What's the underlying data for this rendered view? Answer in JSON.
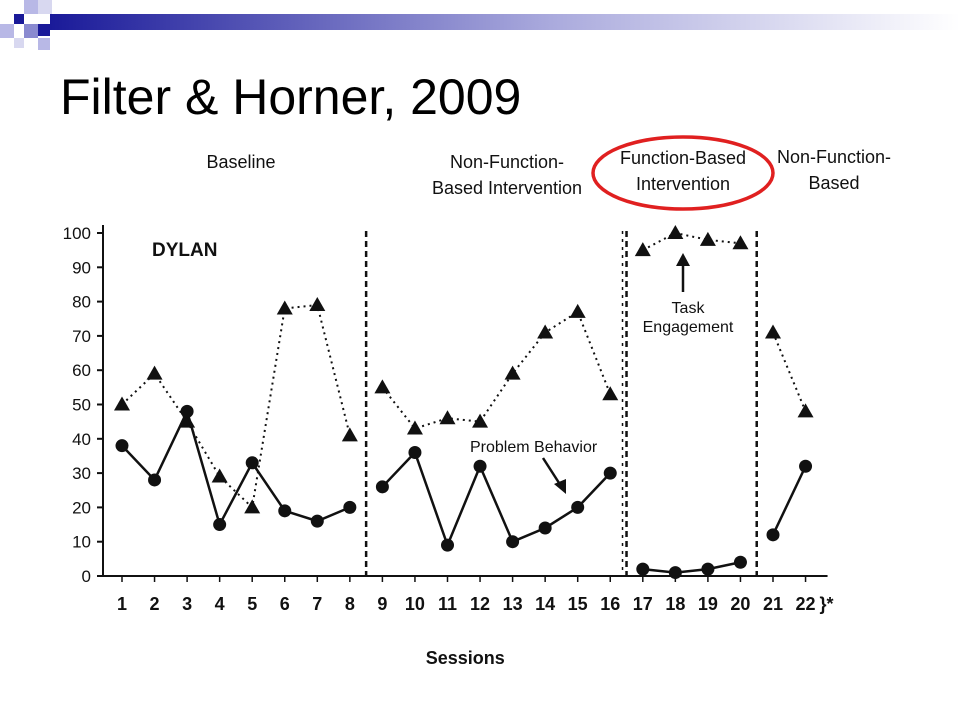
{
  "slide": {
    "title": "Filter & Horner, 2009"
  },
  "colors": {
    "accent_dark": "#1a1a99",
    "accent_light": "#b8b8e6",
    "highlight_circle": "#e02020",
    "ink": "#111111"
  },
  "chart_data": {
    "type": "line",
    "subject": "DYLAN",
    "xlabel": "Sessions",
    "ylabel": "",
    "ylim": [
      0,
      100
    ],
    "yticks": [
      0,
      10,
      20,
      30,
      40,
      50,
      60,
      70,
      80,
      90,
      100
    ],
    "x": [
      1,
      2,
      3,
      4,
      5,
      6,
      7,
      8,
      9,
      10,
      11,
      12,
      13,
      14,
      15,
      16,
      17,
      18,
      19,
      20,
      21,
      22
    ],
    "x_tick_labels": [
      "1",
      "2",
      "3",
      "4",
      "5",
      "6",
      "7",
      "8",
      "9",
      "10",
      "11",
      "12",
      "13",
      "14",
      "15",
      "16",
      "17",
      "18",
      "19",
      "20",
      "21",
      "22"
    ],
    "x_bracket_note": "*",
    "phases": [
      {
        "label_lines": [
          "Baseline"
        ],
        "start": 1,
        "end": 8
      },
      {
        "label_lines": [
          "Non-Function-",
          "Based Intervention"
        ],
        "start": 9,
        "end": 16
      },
      {
        "label_lines": [
          "Function-Based",
          "Intervention"
        ],
        "start": 17,
        "end": 20,
        "highlighted": true
      },
      {
        "label_lines": [
          "Non-Function-",
          "Based"
        ],
        "start": 21,
        "end": 22
      }
    ],
    "series": [
      {
        "name": "Task Engagement",
        "marker": "triangle",
        "line_style": "dotted",
        "values": [
          50,
          59,
          45,
          29,
          20,
          78,
          79,
          41,
          55,
          43,
          46,
          45,
          59,
          71,
          77,
          53,
          95,
          100,
          98,
          97,
          71,
          48
        ]
      },
      {
        "name": "Problem Behavior",
        "marker": "circle",
        "line_style": "solid",
        "values": [
          38,
          28,
          48,
          15,
          33,
          19,
          16,
          20,
          26,
          36,
          9,
          32,
          10,
          14,
          20,
          30,
          2,
          1,
          2,
          4,
          12,
          32
        ]
      }
    ],
    "annotations": {
      "task_engagement": "Task\nEngagement",
      "problem_behavior": "Problem Behavior"
    }
  }
}
